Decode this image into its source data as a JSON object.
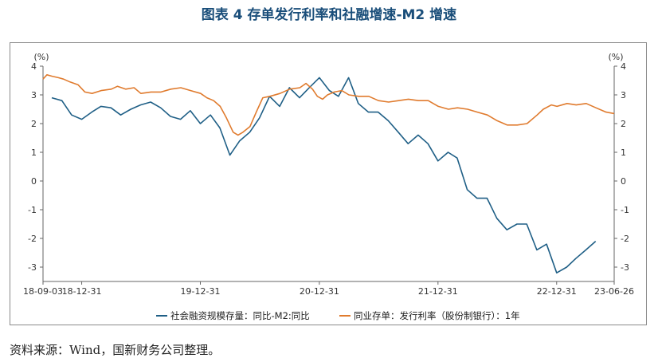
{
  "title": "图表 4  存单发行利率和社融增速-M2 增速",
  "source": "资料来源：Wind，国新财务公司整理。",
  "chart_data": {
    "type": "line",
    "y_unit_label_left": "(%)",
    "y_unit_label_right": "(%)",
    "ylim": [
      -3.5,
      4
    ],
    "y_ticks": [
      -3,
      -2,
      -1,
      0,
      1,
      2,
      3,
      4
    ],
    "x_tick_labels": [
      "18-09-03",
      "18-12-31",
      "19-12-31",
      "20-12-31",
      "21-12-31",
      "22-12-31",
      "23-06-26"
    ],
    "x_tick_dates": [
      "2018-09-03",
      "2018-12-31",
      "2019-12-31",
      "2020-12-31",
      "2021-12-31",
      "2022-12-31",
      "2023-06-26"
    ],
    "grid": false,
    "legend_position": "bottom",
    "series": [
      {
        "name": "社会融资规模存量：同比-M2:同比",
        "color": "#1f5f86",
        "points": [
          [
            "2018-09-30",
            2.9
          ],
          [
            "2018-10-31",
            2.8
          ],
          [
            "2018-11-30",
            2.3
          ],
          [
            "2018-12-31",
            2.15
          ],
          [
            "2019-01-31",
            2.4
          ],
          [
            "2019-02-28",
            2.6
          ],
          [
            "2019-03-31",
            2.55
          ],
          [
            "2019-04-30",
            2.3
          ],
          [
            "2019-05-31",
            2.5
          ],
          [
            "2019-06-30",
            2.65
          ],
          [
            "2019-07-31",
            2.75
          ],
          [
            "2019-08-31",
            2.55
          ],
          [
            "2019-09-30",
            2.25
          ],
          [
            "2019-10-31",
            2.15
          ],
          [
            "2019-11-30",
            2.45
          ],
          [
            "2019-12-31",
            2.0
          ],
          [
            "2020-01-31",
            2.3
          ],
          [
            "2020-02-29",
            1.85
          ],
          [
            "2020-03-31",
            0.9
          ],
          [
            "2020-04-30",
            1.4
          ],
          [
            "2020-05-31",
            1.7
          ],
          [
            "2020-06-30",
            2.2
          ],
          [
            "2020-07-31",
            2.95
          ],
          [
            "2020-08-31",
            2.6
          ],
          [
            "2020-09-30",
            3.25
          ],
          [
            "2020-10-31",
            2.9
          ],
          [
            "2020-11-30",
            3.25
          ],
          [
            "2020-12-31",
            3.6
          ],
          [
            "2021-01-31",
            3.15
          ],
          [
            "2021-02-28",
            2.95
          ],
          [
            "2021-03-31",
            3.6
          ],
          [
            "2021-04-30",
            2.7
          ],
          [
            "2021-05-31",
            2.4
          ],
          [
            "2021-06-30",
            2.4
          ],
          [
            "2021-07-31",
            2.1
          ],
          [
            "2021-08-31",
            1.7
          ],
          [
            "2021-09-30",
            1.3
          ],
          [
            "2021-10-31",
            1.6
          ],
          [
            "2021-11-30",
            1.3
          ],
          [
            "2021-12-31",
            0.7
          ],
          [
            "2022-01-31",
            1.0
          ],
          [
            "2022-02-28",
            0.8
          ],
          [
            "2022-03-31",
            -0.3
          ],
          [
            "2022-04-30",
            -0.6
          ],
          [
            "2022-05-31",
            -0.6
          ],
          [
            "2022-06-30",
            -1.3
          ],
          [
            "2022-07-31",
            -1.7
          ],
          [
            "2022-08-31",
            -1.5
          ],
          [
            "2022-09-30",
            -1.5
          ],
          [
            "2022-10-31",
            -2.4
          ],
          [
            "2022-11-30",
            -2.2
          ],
          [
            "2022-12-31",
            -3.2
          ],
          [
            "2023-01-31",
            -3.0
          ],
          [
            "2023-02-28",
            -2.7
          ],
          [
            "2023-03-31",
            -2.4
          ],
          [
            "2023-04-30",
            -2.1
          ]
        ]
      },
      {
        "name": "同业存单：发行利率（股份制银行）：1年",
        "color": "#e07b2e",
        "points": [
          [
            "2018-09-03",
            3.55
          ],
          [
            "2018-09-15",
            3.7
          ],
          [
            "2018-10-01",
            3.65
          ],
          [
            "2018-10-20",
            3.6
          ],
          [
            "2018-11-05",
            3.55
          ],
          [
            "2018-11-25",
            3.45
          ],
          [
            "2018-12-20",
            3.35
          ],
          [
            "2019-01-10",
            3.1
          ],
          [
            "2019-02-01",
            3.05
          ],
          [
            "2019-03-01",
            3.15
          ],
          [
            "2019-04-01",
            3.2
          ],
          [
            "2019-04-20",
            3.3
          ],
          [
            "2019-05-15",
            3.2
          ],
          [
            "2019-06-10",
            3.25
          ],
          [
            "2019-07-01",
            3.05
          ],
          [
            "2019-08-01",
            3.1
          ],
          [
            "2019-09-01",
            3.1
          ],
          [
            "2019-10-01",
            3.2
          ],
          [
            "2019-11-01",
            3.25
          ],
          [
            "2019-12-01",
            3.15
          ],
          [
            "2020-01-01",
            3.05
          ],
          [
            "2020-01-20",
            2.9
          ],
          [
            "2020-02-10",
            2.8
          ],
          [
            "2020-03-01",
            2.6
          ],
          [
            "2020-03-20",
            2.2
          ],
          [
            "2020-04-10",
            1.7
          ],
          [
            "2020-04-25",
            1.6
          ],
          [
            "2020-05-10",
            1.7
          ],
          [
            "2020-06-01",
            1.9
          ],
          [
            "2020-06-20",
            2.4
          ],
          [
            "2020-07-10",
            2.9
          ],
          [
            "2020-08-01",
            2.95
          ],
          [
            "2020-09-01",
            3.05
          ],
          [
            "2020-10-01",
            3.2
          ],
          [
            "2020-11-01",
            3.25
          ],
          [
            "2020-11-20",
            3.4
          ],
          [
            "2020-12-10",
            3.2
          ],
          [
            "2020-12-25",
            2.95
          ],
          [
            "2021-01-10",
            2.85
          ],
          [
            "2021-01-25",
            3.0
          ],
          [
            "2021-02-15",
            3.1
          ],
          [
            "2021-03-10",
            3.15
          ],
          [
            "2021-04-01",
            3.0
          ],
          [
            "2021-05-01",
            2.95
          ],
          [
            "2021-06-01",
            2.95
          ],
          [
            "2021-07-01",
            2.8
          ],
          [
            "2021-08-01",
            2.75
          ],
          [
            "2021-09-01",
            2.8
          ],
          [
            "2021-10-01",
            2.85
          ],
          [
            "2021-11-01",
            2.8
          ],
          [
            "2021-12-01",
            2.8
          ],
          [
            "2022-01-01",
            2.6
          ],
          [
            "2022-02-01",
            2.5
          ],
          [
            "2022-03-01",
            2.55
          ],
          [
            "2022-04-01",
            2.5
          ],
          [
            "2022-05-01",
            2.4
          ],
          [
            "2022-06-01",
            2.3
          ],
          [
            "2022-07-01",
            2.1
          ],
          [
            "2022-08-01",
            1.95
          ],
          [
            "2022-09-01",
            1.95
          ],
          [
            "2022-10-01",
            2.0
          ],
          [
            "2022-11-01",
            2.3
          ],
          [
            "2022-11-20",
            2.5
          ],
          [
            "2022-12-15",
            2.65
          ],
          [
            "2023-01-01",
            2.6
          ],
          [
            "2023-02-01",
            2.7
          ],
          [
            "2023-03-01",
            2.65
          ],
          [
            "2023-04-01",
            2.7
          ],
          [
            "2023-05-01",
            2.55
          ],
          [
            "2023-06-01",
            2.4
          ],
          [
            "2023-06-26",
            2.35
          ]
        ]
      }
    ]
  }
}
